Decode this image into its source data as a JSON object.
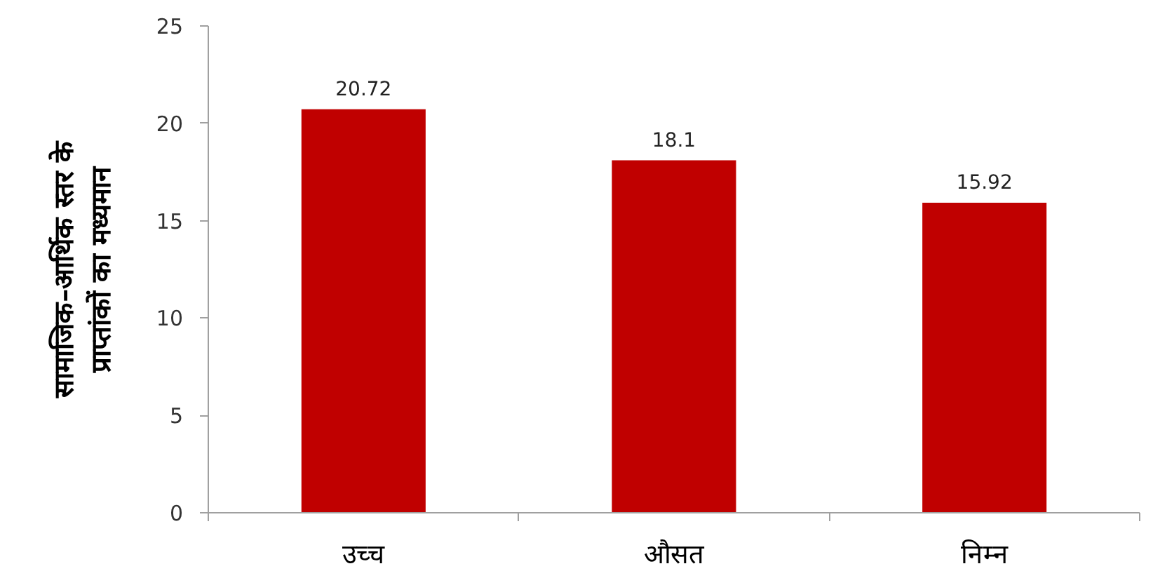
{
  "chart_data": {
    "type": "bar",
    "categories": [
      "उच्च",
      "औसत",
      "निम्न"
    ],
    "values": [
      20.72,
      18.1,
      15.92
    ],
    "color": "#c00000",
    "ylabel": "सामाजिक–आर्थिक स्तर के\nप्राप्तांकों का मध्यमान",
    "ylim": [
      0,
      25
    ],
    "yticks": [
      0,
      5,
      10,
      15,
      20,
      25
    ],
    "grid": false,
    "data_labels": true
  }
}
